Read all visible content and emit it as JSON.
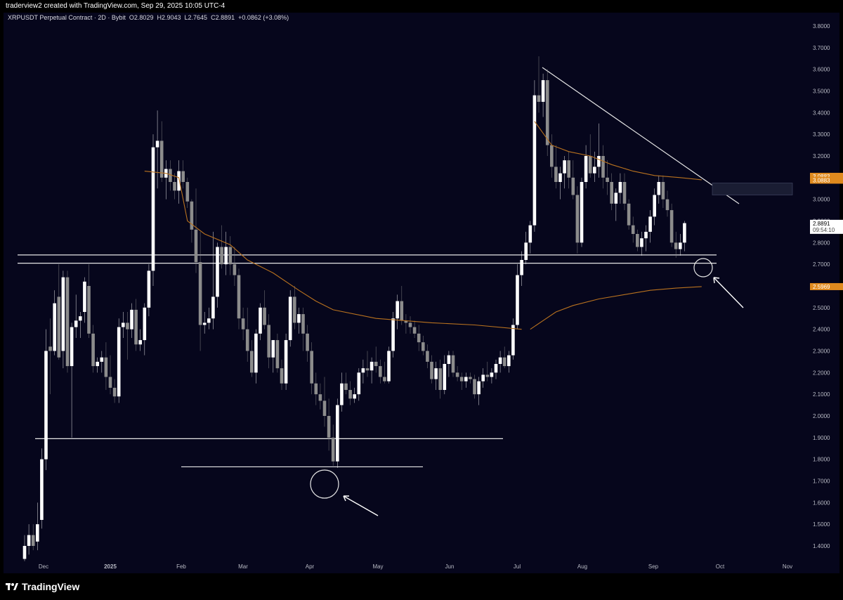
{
  "header": {
    "caption": "traderview2 created with TradingView.com, Sep 29, 2025 10:05 UTC-4"
  },
  "legend": {
    "symbol": "XRPUSDT Perpetual Contract · 2D · Bybit",
    "open": "O2.8029",
    "high": "H2.9043",
    "low": "L2.7645",
    "close": "C2.8891",
    "change": "+0.0862 (+3.08%)"
  },
  "branding": {
    "logo_text": "TradingView"
  },
  "colors": {
    "background": "#06061c",
    "bull": "#ffffff",
    "bear": "#8c8c8c",
    "ma": "#b9721f",
    "line": "#e6e6e6"
  },
  "chart_data": {
    "type": "candlestick",
    "y_axis_labels": [
      "3.8000",
      "3.7000",
      "3.6000",
      "3.5000",
      "3.4000",
      "3.3000",
      "3.2000",
      "3.1000",
      "3.0000",
      "2.9000",
      "2.8000",
      "2.7000",
      "2.6000",
      "2.5000",
      "2.4000",
      "2.3000",
      "2.2000",
      "2.1000",
      "2.0000",
      "1.9000",
      "1.8000",
      "1.7000",
      "1.6000",
      "1.5000",
      "1.4000"
    ],
    "ylim": [
      1.33,
      3.82
    ],
    "x_axis_labels": [
      "Dec",
      "2025",
      "Feb",
      "Mar",
      "Apr",
      "May",
      "Jun",
      "Jul",
      "Aug",
      "Sep",
      "Oct",
      "Nov"
    ],
    "x_axis_dates": [
      "2024-12-01",
      "2025-01-01",
      "2025-02-01",
      "2025-03-01",
      "2025-04-01",
      "2025-05-01",
      "2025-06-01",
      "2025-07-01",
      "2025-08-01",
      "2025-09-01",
      "2025-10-01",
      "2025-11-01"
    ],
    "price_badges": [
      {
        "label": "3.0883",
        "value": 3.106,
        "color": "#e08a1e"
      },
      {
        "label": "3.0883",
        "value": 3.0883,
        "color": "#e08a1e"
      },
      {
        "label": "2.8891",
        "value": 2.8891,
        "color": "#ffffff"
      },
      {
        "label": "2.5969",
        "value": 2.5969,
        "color": "#e08a1e"
      }
    ],
    "countdown": "09:54:10",
    "candles_ohlc": [
      [
        1.34,
        1.45,
        1.33,
        1.4
      ],
      [
        1.4,
        1.5,
        1.36,
        1.45
      ],
      [
        1.45,
        1.5,
        1.38,
        1.4
      ],
      [
        1.42,
        1.6,
        1.38,
        1.5
      ],
      [
        1.52,
        1.85,
        1.48,
        1.8
      ],
      [
        1.8,
        2.4,
        1.75,
        2.3
      ],
      [
        2.32,
        2.45,
        2.1,
        2.3
      ],
      [
        2.3,
        2.58,
        2.28,
        2.52
      ],
      [
        2.55,
        2.7,
        2.26,
        2.27
      ],
      [
        2.3,
        2.67,
        2.22,
        2.64
      ],
      [
        2.64,
        2.67,
        2.2,
        2.23
      ],
      [
        2.23,
        2.43,
        1.9,
        2.41
      ],
      [
        2.41,
        2.56,
        2.36,
        2.44
      ],
      [
        2.44,
        2.48,
        2.36,
        2.46
      ],
      [
        2.48,
        2.64,
        2.43,
        2.62
      ],
      [
        2.6,
        2.7,
        2.36,
        2.38
      ],
      [
        2.38,
        2.42,
        2.2,
        2.23
      ],
      [
        2.23,
        2.27,
        2.2,
        2.25
      ],
      [
        2.25,
        2.3,
        2.2,
        2.27
      ],
      [
        2.27,
        2.34,
        2.12,
        2.18
      ],
      [
        2.18,
        2.28,
        2.1,
        2.13
      ],
      [
        2.13,
        2.17,
        2.06,
        2.09
      ],
      [
        2.09,
        2.45,
        2.06,
        2.41
      ],
      [
        2.41,
        2.48,
        2.36,
        2.43
      ],
      [
        2.43,
        2.48,
        2.26,
        2.4
      ],
      [
        2.4,
        2.52,
        2.36,
        2.49
      ],
      [
        2.49,
        2.54,
        2.3,
        2.33
      ],
      [
        2.33,
        2.4,
        2.3,
        2.35
      ],
      [
        2.35,
        2.52,
        2.28,
        2.5
      ],
      [
        2.5,
        2.7,
        2.46,
        2.67
      ],
      [
        2.67,
        3.3,
        2.6,
        3.24
      ],
      [
        3.24,
        3.41,
        3.05,
        3.27
      ],
      [
        3.27,
        3.36,
        3.08,
        3.1
      ],
      [
        3.1,
        3.18,
        3.0,
        3.14
      ],
      [
        3.14,
        3.18,
        3.04,
        3.08
      ],
      [
        3.08,
        3.12,
        3.0,
        3.04
      ],
      [
        3.04,
        3.18,
        2.98,
        3.13
      ],
      [
        3.13,
        3.18,
        3.05,
        3.08
      ],
      [
        3.08,
        3.1,
        2.96,
        2.99
      ],
      [
        2.99,
        3.0,
        2.8,
        2.86
      ],
      [
        2.86,
        3.05,
        2.66,
        2.71
      ],
      [
        2.71,
        2.85,
        2.3,
        2.42
      ],
      [
        2.42,
        2.48,
        2.38,
        2.43
      ],
      [
        2.43,
        2.5,
        2.4,
        2.45
      ],
      [
        2.45,
        2.85,
        2.4,
        2.55
      ],
      [
        2.55,
        2.8,
        2.5,
        2.78
      ],
      [
        2.78,
        2.88,
        2.68,
        2.7
      ],
      [
        2.7,
        2.85,
        2.65,
        2.78
      ],
      [
        2.78,
        2.83,
        2.65,
        2.7
      ],
      [
        2.7,
        2.78,
        2.6,
        2.65
      ],
      [
        2.65,
        2.68,
        2.4,
        2.45
      ],
      [
        2.45,
        2.5,
        2.35,
        2.4
      ],
      [
        2.4,
        2.5,
        2.25,
        2.3
      ],
      [
        2.3,
        2.35,
        2.18,
        2.2
      ],
      [
        2.2,
        2.4,
        2.15,
        2.38
      ],
      [
        2.38,
        2.52,
        2.35,
        2.5
      ],
      [
        2.5,
        2.58,
        2.4,
        2.42
      ],
      [
        2.42,
        2.47,
        2.22,
        2.27
      ],
      [
        2.27,
        2.35,
        2.2,
        2.35
      ],
      [
        2.35,
        2.38,
        2.2,
        2.22
      ],
      [
        2.22,
        2.26,
        2.12,
        2.15
      ],
      [
        2.15,
        2.38,
        2.12,
        2.35
      ],
      [
        2.35,
        2.58,
        2.32,
        2.55
      ],
      [
        2.55,
        2.6,
        2.4,
        2.43
      ],
      [
        2.43,
        2.5,
        2.38,
        2.47
      ],
      [
        2.47,
        2.5,
        2.3,
        2.38
      ],
      [
        2.38,
        2.42,
        2.25,
        2.3
      ],
      [
        2.3,
        2.34,
        2.1,
        2.15
      ],
      [
        2.15,
        2.2,
        2.05,
        2.1
      ],
      [
        2.1,
        2.15,
        2.03,
        2.07
      ],
      [
        2.07,
        2.18,
        1.95,
        2.0
      ],
      [
        2.0,
        2.08,
        1.84,
        1.9
      ],
      [
        1.9,
        1.96,
        1.77,
        1.79
      ],
      [
        1.79,
        2.08,
        1.76,
        2.05
      ],
      [
        2.05,
        2.2,
        2.02,
        2.15
      ],
      [
        2.15,
        2.2,
        2.1,
        2.12
      ],
      [
        2.12,
        2.16,
        2.05,
        2.08
      ],
      [
        2.08,
        2.13,
        2.06,
        2.1
      ],
      [
        2.1,
        2.22,
        2.07,
        2.2
      ],
      [
        2.2,
        2.26,
        2.15,
        2.22
      ],
      [
        2.22,
        2.3,
        2.18,
        2.21
      ],
      [
        2.21,
        2.27,
        2.15,
        2.25
      ],
      [
        2.25,
        2.32,
        2.2,
        2.23
      ],
      [
        2.23,
        2.26,
        2.15,
        2.18
      ],
      [
        2.18,
        2.25,
        2.15,
        2.16
      ],
      [
        2.16,
        2.32,
        2.15,
        2.3
      ],
      [
        2.3,
        2.48,
        2.27,
        2.45
      ],
      [
        2.45,
        2.56,
        2.4,
        2.53
      ],
      [
        2.53,
        2.6,
        2.42,
        2.44
      ],
      [
        2.44,
        2.47,
        2.38,
        2.43
      ],
      [
        2.43,
        2.46,
        2.38,
        2.41
      ],
      [
        2.41,
        2.44,
        2.36,
        2.38
      ],
      [
        2.38,
        2.42,
        2.3,
        2.34
      ],
      [
        2.34,
        2.37,
        2.28,
        2.3
      ],
      [
        2.3,
        2.33,
        2.22,
        2.25
      ],
      [
        2.25,
        2.28,
        2.15,
        2.17
      ],
      [
        2.17,
        2.25,
        2.12,
        2.22
      ],
      [
        2.22,
        2.26,
        2.08,
        2.12
      ],
      [
        2.12,
        2.28,
        2.1,
        2.24
      ],
      [
        2.24,
        2.3,
        2.18,
        2.28
      ],
      [
        2.28,
        2.3,
        2.18,
        2.2
      ],
      [
        2.2,
        2.23,
        2.16,
        2.18
      ],
      [
        2.18,
        2.2,
        2.12,
        2.16
      ],
      [
        2.16,
        2.2,
        2.13,
        2.18
      ],
      [
        2.18,
        2.2,
        2.15,
        2.17
      ],
      [
        2.17,
        2.19,
        2.08,
        2.1
      ],
      [
        2.1,
        2.18,
        2.05,
        2.16
      ],
      [
        2.16,
        2.22,
        2.13,
        2.19
      ],
      [
        2.19,
        2.25,
        2.16,
        2.18
      ],
      [
        2.18,
        2.22,
        2.15,
        2.2
      ],
      [
        2.2,
        2.26,
        2.17,
        2.24
      ],
      [
        2.24,
        2.3,
        2.2,
        2.27
      ],
      [
        2.27,
        2.32,
        2.22,
        2.23
      ],
      [
        2.23,
        2.3,
        2.2,
        2.28
      ],
      [
        2.28,
        2.45,
        2.26,
        2.42
      ],
      [
        2.42,
        2.7,
        2.4,
        2.65
      ],
      [
        2.65,
        2.76,
        2.6,
        2.72
      ],
      [
        2.72,
        2.85,
        2.7,
        2.8
      ],
      [
        2.8,
        2.9,
        2.75,
        2.88
      ],
      [
        2.88,
        3.55,
        2.85,
        3.48
      ],
      [
        3.48,
        3.66,
        3.4,
        3.45
      ],
      [
        3.45,
        3.58,
        3.38,
        3.55
      ],
      [
        3.55,
        3.6,
        3.2,
        3.25
      ],
      [
        3.25,
        3.3,
        3.1,
        3.15
      ],
      [
        3.15,
        3.25,
        3.05,
        3.08
      ],
      [
        3.08,
        3.15,
        3.0,
        3.12
      ],
      [
        3.12,
        3.2,
        3.05,
        3.18
      ],
      [
        3.18,
        3.22,
        3.05,
        3.1
      ],
      [
        3.1,
        3.18,
        3.0,
        3.02
      ],
      [
        3.02,
        3.06,
        2.75,
        2.8
      ],
      [
        2.8,
        3.1,
        2.78,
        3.08
      ],
      [
        3.08,
        3.25,
        3.05,
        3.2
      ],
      [
        3.2,
        3.3,
        3.1,
        3.12
      ],
      [
        3.12,
        3.22,
        3.08,
        3.15
      ],
      [
        3.15,
        3.35,
        3.1,
        3.2
      ],
      [
        3.2,
        3.25,
        3.05,
        3.1
      ],
      [
        3.1,
        3.18,
        3.02,
        3.08
      ],
      [
        3.08,
        3.12,
        2.95,
        2.98
      ],
      [
        2.98,
        3.05,
        2.9,
        3.03
      ],
      [
        3.03,
        3.12,
        2.98,
        3.08
      ],
      [
        3.08,
        3.12,
        2.95,
        2.98
      ],
      [
        2.98,
        3.0,
        2.86,
        2.88
      ],
      [
        2.88,
        2.92,
        2.8,
        2.84
      ],
      [
        2.84,
        2.86,
        2.76,
        2.78
      ],
      [
        2.78,
        2.85,
        2.74,
        2.82
      ],
      [
        2.82,
        2.88,
        2.76,
        2.85
      ],
      [
        2.85,
        2.95,
        2.8,
        2.92
      ],
      [
        2.92,
        3.05,
        2.88,
        3.02
      ],
      [
        3.02,
        3.11,
        2.98,
        3.08
      ],
      [
        3.08,
        3.11,
        2.96,
        3.0
      ],
      [
        3.0,
        3.04,
        2.92,
        2.95
      ],
      [
        2.95,
        2.98,
        2.78,
        2.8
      ],
      [
        2.8,
        2.85,
        2.73,
        2.77
      ],
      [
        2.77,
        2.84,
        2.74,
        2.8
      ],
      [
        2.8,
        2.9,
        2.76,
        2.89
      ]
    ],
    "moving_average": [
      [
        0,
        null
      ],
      [
        28,
        3.13
      ],
      [
        33,
        3.12
      ],
      [
        37,
        2.95
      ],
      [
        42,
        2.84
      ],
      [
        50,
        2.73
      ],
      [
        60,
        2.63
      ],
      [
        70,
        2.53
      ],
      [
        76,
        2.45
      ],
      [
        85,
        2.44
      ],
      [
        95,
        2.43
      ],
      [
        105,
        2.42
      ],
      [
        115,
        2.41
      ],
      [
        118,
        2.4
      ],
      [
        121,
        2.48
      ],
      [
        125,
        2.57
      ],
      [
        130,
        2.6
      ],
      [
        140,
        2.62
      ],
      [
        150,
        2.62
      ],
      [
        156,
        2.62
      ],
      [
        158,
        2.6
      ]
    ],
    "slow_average": [
      [
        118,
        2.4
      ],
      [
        122,
        2.47
      ],
      [
        126,
        2.51
      ],
      [
        132,
        2.55
      ],
      [
        140,
        2.57
      ],
      [
        150,
        2.59
      ],
      [
        158,
        2.597
      ]
    ],
    "horizontal_levels": [
      {
        "value": 2.743,
        "x_start": 0,
        "x_end": 158
      },
      {
        "value": 2.705,
        "x_start": 0,
        "x_end": 158
      },
      {
        "value": 1.895,
        "x_start": 4,
        "x_end": 107
      },
      {
        "value": 1.765,
        "x_start": 35,
        "x_end": 92
      }
    ],
    "trendline": {
      "from": [
        118,
        3.62
      ],
      "to": [
        162,
        2.9
      ]
    },
    "zone": {
      "x_start": 158,
      "x_end": 180,
      "y_top": 3.075,
      "y_bottom": 3.02
    },
    "markers": [
      {
        "label": "circle",
        "index": 67,
        "value": 1.715
      },
      {
        "label": "circle",
        "index": 155,
        "value": 2.69
      }
    ]
  }
}
